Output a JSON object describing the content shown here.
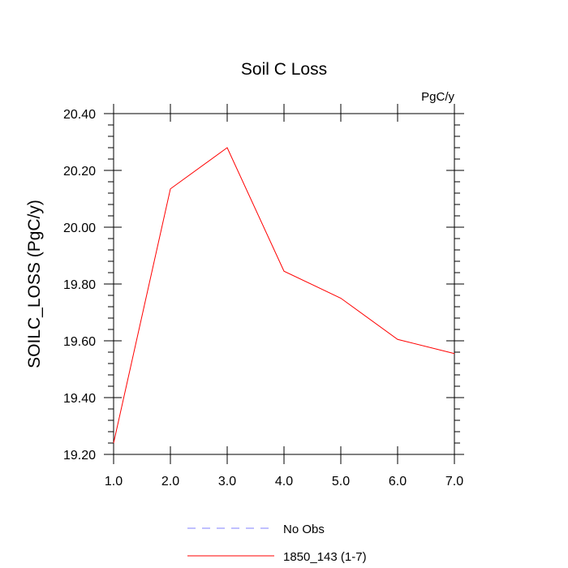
{
  "chart_data": {
    "type": "line",
    "title": "Soil C Loss",
    "units_label": "PgC/y",
    "ylabel": "SOILC_LOSS  (PgC/y)",
    "xlabel": "",
    "xlim": [
      1.0,
      7.0
    ],
    "ylim": [
      19.2,
      20.4
    ],
    "x_ticks": [
      1.0,
      2.0,
      3.0,
      4.0,
      5.0,
      6.0,
      7.0
    ],
    "x_tick_labels": [
      "1.0",
      "2.0",
      "3.0",
      "4.0",
      "5.0",
      "6.0",
      "7.0"
    ],
    "y_ticks": [
      19.2,
      19.4,
      19.6,
      19.8,
      20.0,
      20.2,
      20.4
    ],
    "y_tick_labels": [
      "19.20",
      "19.40",
      "19.60",
      "19.80",
      "20.00",
      "20.20",
      "20.40"
    ],
    "y_minor_step": 0.04,
    "grid": false,
    "legend_position": "bottom",
    "series": [
      {
        "name": "1850_143 (1-7)",
        "color": "#ff0000",
        "dash": "solid",
        "x": [
          1,
          2,
          3,
          4,
          5,
          6,
          7
        ],
        "values": [
          19.24,
          20.135,
          20.28,
          19.845,
          19.75,
          19.605,
          19.555
        ]
      }
    ],
    "legend": [
      {
        "label": "No Obs",
        "color": "#8080ff",
        "dash": "dashed"
      },
      {
        "label": "1850_143 (1-7)",
        "color": "#ff0000",
        "dash": "solid"
      }
    ]
  }
}
